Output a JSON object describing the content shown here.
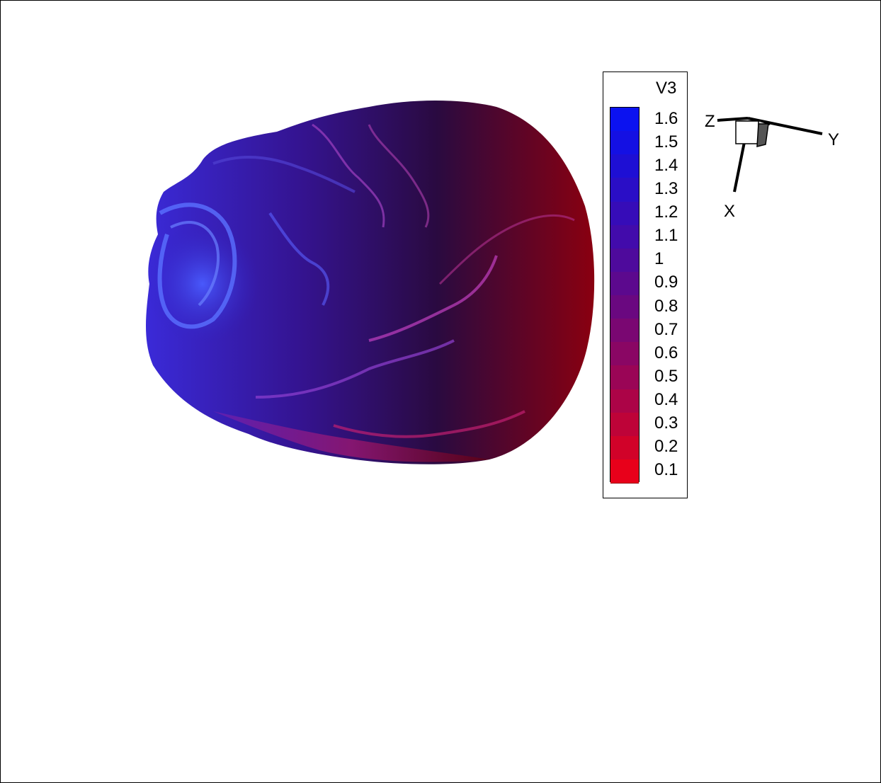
{
  "legend": {
    "title": "V3",
    "levels": [
      "1.6",
      "1.5",
      "1.4",
      "1.3",
      "1.2",
      "1.1",
      "1",
      "0.9",
      "0.8",
      "0.7",
      "0.6",
      "0.5",
      "0.4",
      "0.3",
      "0.2",
      "0.1"
    ],
    "colors": [
      "#0b12f0",
      "#1410e3",
      "#1e0fd4",
      "#2a0ec6",
      "#360cb8",
      "#420bab",
      "#4e0a9c",
      "#5c098e",
      "#6a0880",
      "#7a0772",
      "#8a0664",
      "#9a0556",
      "#ac0447",
      "#be0338",
      "#d10229",
      "#e8001a"
    ]
  },
  "axes": {
    "x_label": "X",
    "y_label": "Y",
    "z_label": "Z"
  },
  "surface": {
    "color_high": "#2a3cf0",
    "color_mid": "#2a0a5a",
    "color_low": "#8a0012",
    "ridge_color": "#c040c8"
  }
}
